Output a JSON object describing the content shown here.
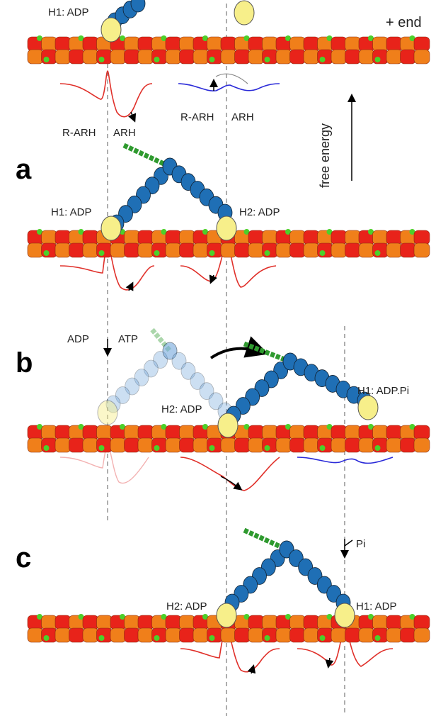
{
  "top": {
    "head_label": "H1: ADP",
    "end_label": "+ end",
    "energy_labels": [
      "R-ARH",
      "ARH",
      "R-ARH",
      "ARH"
    ],
    "axis_label": "free energy"
  },
  "a": {
    "panel_label": "a",
    "head_labels": [
      "H1: ADP",
      "H2: ADP"
    ]
  },
  "b": {
    "panel_label": "b",
    "exchange": [
      "ADP",
      "ATP"
    ],
    "head_labels": [
      "H2: ADP",
      "H1: ADP.Pi"
    ]
  },
  "c": {
    "panel_label": "c",
    "release": "Pi",
    "head_labels": [
      "H2: ADP",
      "H1: ADP"
    ]
  }
}
